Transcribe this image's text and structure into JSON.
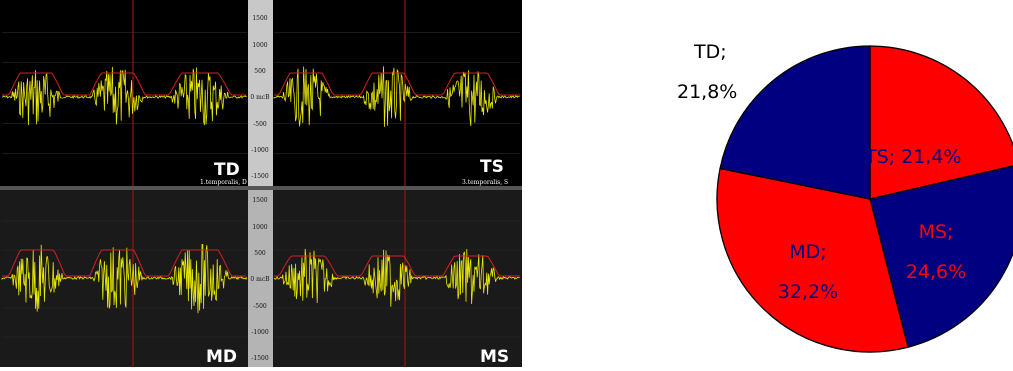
{
  "emg": {
    "axis_top": {
      "ticks": [
        "1500",
        "1000",
        "500",
        "0 mcB",
        "-500",
        "-1000",
        "-1500"
      ],
      "values": [
        1500,
        1000,
        500,
        0,
        -500,
        -1000,
        -1500
      ]
    },
    "axis_bottom": {
      "ticks": [
        "1500",
        "1000",
        "500",
        "0 mcB",
        "-500",
        "-1000",
        "-1500"
      ],
      "values": [
        1500,
        1000,
        500,
        0,
        -500,
        -1000,
        -1500
      ]
    },
    "panels": [
      {
        "title": "TD",
        "channel": "1.temporalis, D"
      },
      {
        "title": "TS",
        "channel": "3.temporalis, S"
      },
      {
        "title": "MD",
        "channel": ""
      },
      {
        "title": "MS",
        "channel": ""
      }
    ],
    "colors": {
      "signal": "#e8e800",
      "envelope": "#d42020",
      "marker": "#a01010",
      "background_top": "#000000",
      "background_bottom": "#1a1a1a",
      "axis_strip": "#c8c8c8"
    }
  },
  "chart_data": {
    "type": "pie",
    "title": "",
    "slices": [
      {
        "label": "TS",
        "value": 21.4,
        "text": "TS; 21,4%",
        "color": "#ff0000"
      },
      {
        "label": "MS",
        "value": 24.6,
        "text_line1": "MS;",
        "text_line2": "24,6%",
        "color": "#000080"
      },
      {
        "label": "MD",
        "value": 32.2,
        "text_line1": "MD;",
        "text_line2": "32,2%",
        "color": "#ff0000"
      },
      {
        "label": "TD",
        "value": 21.8,
        "text_line1": "TD;",
        "text_line2": "21,8%",
        "color": "#000080"
      }
    ]
  }
}
